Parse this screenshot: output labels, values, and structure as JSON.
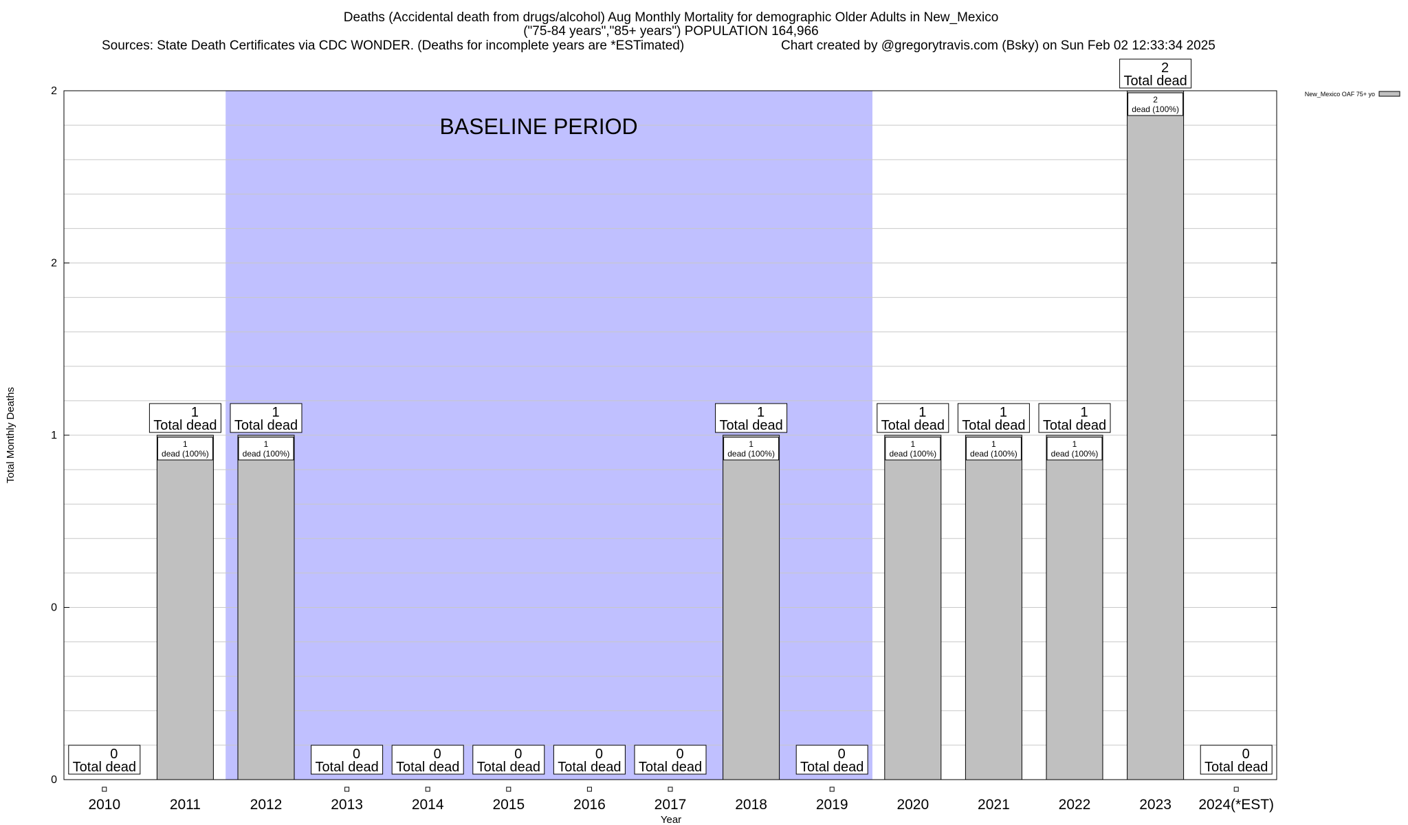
{
  "chart_data": {
    "type": "bar",
    "title": "Deaths (Accidental death from drugs/alcohol) Aug Monthly Mortality for demographic Older Adults in New_Mexico",
    "subtitle": "(\"75-84 years\",\"85+ years\") POPULATION 164,966",
    "sources": "Sources: State Death Certificates via CDC WONDER. (Deaths for incomplete years are *ESTimated)",
    "credit": "Chart created by @gregorytravis.com (Bsky) on Sun Feb 02 12:33:34 2025",
    "xlabel": "Year",
    "ylabel": "Total Monthly Deaths",
    "categories": [
      "2010",
      "2011",
      "2012",
      "2013",
      "2014",
      "2015",
      "2016",
      "2017",
      "2018",
      "2019",
      "2020",
      "2021",
      "2022",
      "2023",
      "2024(*EST)"
    ],
    "series": [
      {
        "name": "New_Mexico OAF 75+ yo",
        "values": [
          0,
          1,
          1,
          0,
          0,
          0,
          0,
          0,
          1,
          0,
          1,
          1,
          1,
          2,
          0
        ],
        "color": "#c0c0c0"
      }
    ],
    "ylim": [
      0,
      2
    ],
    "yticks": [
      0,
      0.5,
      1,
      1.5,
      2
    ],
    "ytick_labels": [
      "0",
      "0",
      "1",
      "2",
      "2"
    ],
    "total_label": "Total dead",
    "bar_inner_label": "dead (100%)",
    "baseline": {
      "label": "BASELINE PERIOD",
      "from": "2012",
      "to": "2019",
      "color": "#c0c0ff"
    },
    "grid": true,
    "legend_position": "top-right"
  }
}
